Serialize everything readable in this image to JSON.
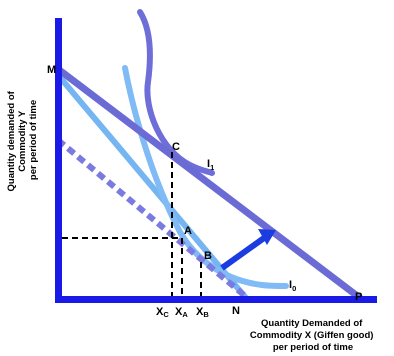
{
  "diagram": {
    "y_axis_title": [
      "Quantity demanded of",
      "Commodity Y",
      "per period of time"
    ],
    "x_axis_title": [
      "Quantity Demanded of",
      "Commodity X (Giffen good)",
      "per period of time"
    ],
    "points": {
      "M": "M",
      "C": "C",
      "A": "A",
      "B": "B",
      "N": "N",
      "P": "P"
    },
    "curves": {
      "I1": "I",
      "I1_sub": "1",
      "I0": "I",
      "I0_sub": "0"
    },
    "ticks": {
      "xc": "X",
      "xc_sub": "C",
      "xa": "X",
      "xa_sub": "A",
      "xb": "X",
      "xb_sub": "B"
    },
    "colors": {
      "axes": "#1a1ae6",
      "budget_original": "#6b6bd6",
      "budget_dotted": "#7a7ae0",
      "budget_compensated": "#75b5f2",
      "indifference_I1": "#6e6ed9",
      "indifference_I0": "#80bbf5",
      "arrow": "#1a3ce0",
      "guides": "#000000"
    }
  }
}
